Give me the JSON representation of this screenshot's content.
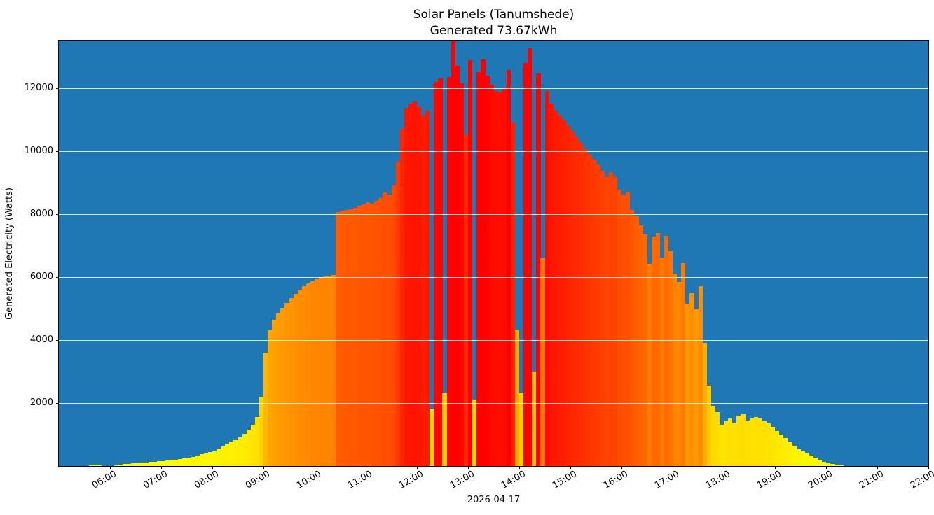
{
  "page": {
    "background_color": "#ffffff"
  },
  "chart_data": {
    "type": "bar",
    "title": "Solar Panels (Tanumshede)",
    "subtitle": "Generated 73.67kWh",
    "xlabel": "2026-04-17",
    "ylabel": "Generated Electricity (Watts)",
    "plot_bg_color": "#1f77b4",
    "grid": "horizontal light lines drawn over bars",
    "bar_colormap": "autumn_r (low=yellow, high=red)",
    "color_vmax": 12500,
    "ylim": [
      0,
      13500
    ],
    "yticks": [
      2000,
      4000,
      6000,
      8000,
      10000,
      12000
    ],
    "xtick_labels": [
      "06:00",
      "07:00",
      "08:00",
      "09:00",
      "10:00",
      "11:00",
      "12:00",
      "13:00",
      "14:00",
      "15:00",
      "16:00",
      "17:00",
      "18:00",
      "19:00",
      "20:00",
      "21:00",
      "22:00"
    ],
    "x_range_minutes": [
      300,
      1320
    ],
    "start_minute": 330,
    "step_minutes": 5,
    "values_watts": [
      0,
      30,
      40,
      25,
      0,
      0,
      0,
      25,
      50,
      65,
      75,
      85,
      95,
      105,
      115,
      125,
      135,
      150,
      165,
      180,
      195,
      210,
      230,
      250,
      275,
      300,
      330,
      370,
      410,
      440,
      470,
      540,
      620,
      720,
      780,
      820,
      920,
      1030,
      1160,
      1320,
      1550,
      2200,
      3600,
      4300,
      4650,
      4850,
      5020,
      5170,
      5320,
      5460,
      5590,
      5700,
      5790,
      5860,
      5920,
      5970,
      6010,
      6040,
      6060,
      8060,
      8100,
      8130,
      8160,
      8200,
      8250,
      8310,
      8380,
      8330,
      8420,
      8500,
      8680,
      8600,
      8900,
      9650,
      10700,
      11350,
      11500,
      11560,
      11400,
      11120,
      11280,
      1800,
      12200,
      12300,
      2300,
      12350,
      13500,
      12700,
      12150,
      10500,
      12880,
      2100,
      12500,
      12900,
      12400,
      12100,
      11900,
      11850,
      11980,
      12560,
      10900,
      4300,
      2300,
      12800,
      13260,
      3000,
      12450,
      6600,
      11900,
      11500,
      11280,
      11120,
      10960,
      10820,
      10640,
      10430,
      10260,
      10060,
      9890,
      9720,
      9560,
      9360,
      9160,
      9320,
      9180,
      8760,
      8600,
      8700,
      8120,
      7920,
      7640,
      7340,
      6420,
      7280,
      7400,
      6620,
      7300,
      6820,
      6100,
      5850,
      6450,
      5150,
      5480,
      4980,
      5700,
      3900,
      2550,
      1900,
      1700,
      1300,
      1420,
      1500,
      1350,
      1600,
      1650,
      1450,
      1500,
      1560,
      1520,
      1430,
      1350,
      1250,
      1120,
      1000,
      880,
      760,
      640,
      540,
      460,
      390,
      330,
      270,
      200,
      140,
      100,
      70,
      45,
      25,
      0,
      0
    ]
  }
}
